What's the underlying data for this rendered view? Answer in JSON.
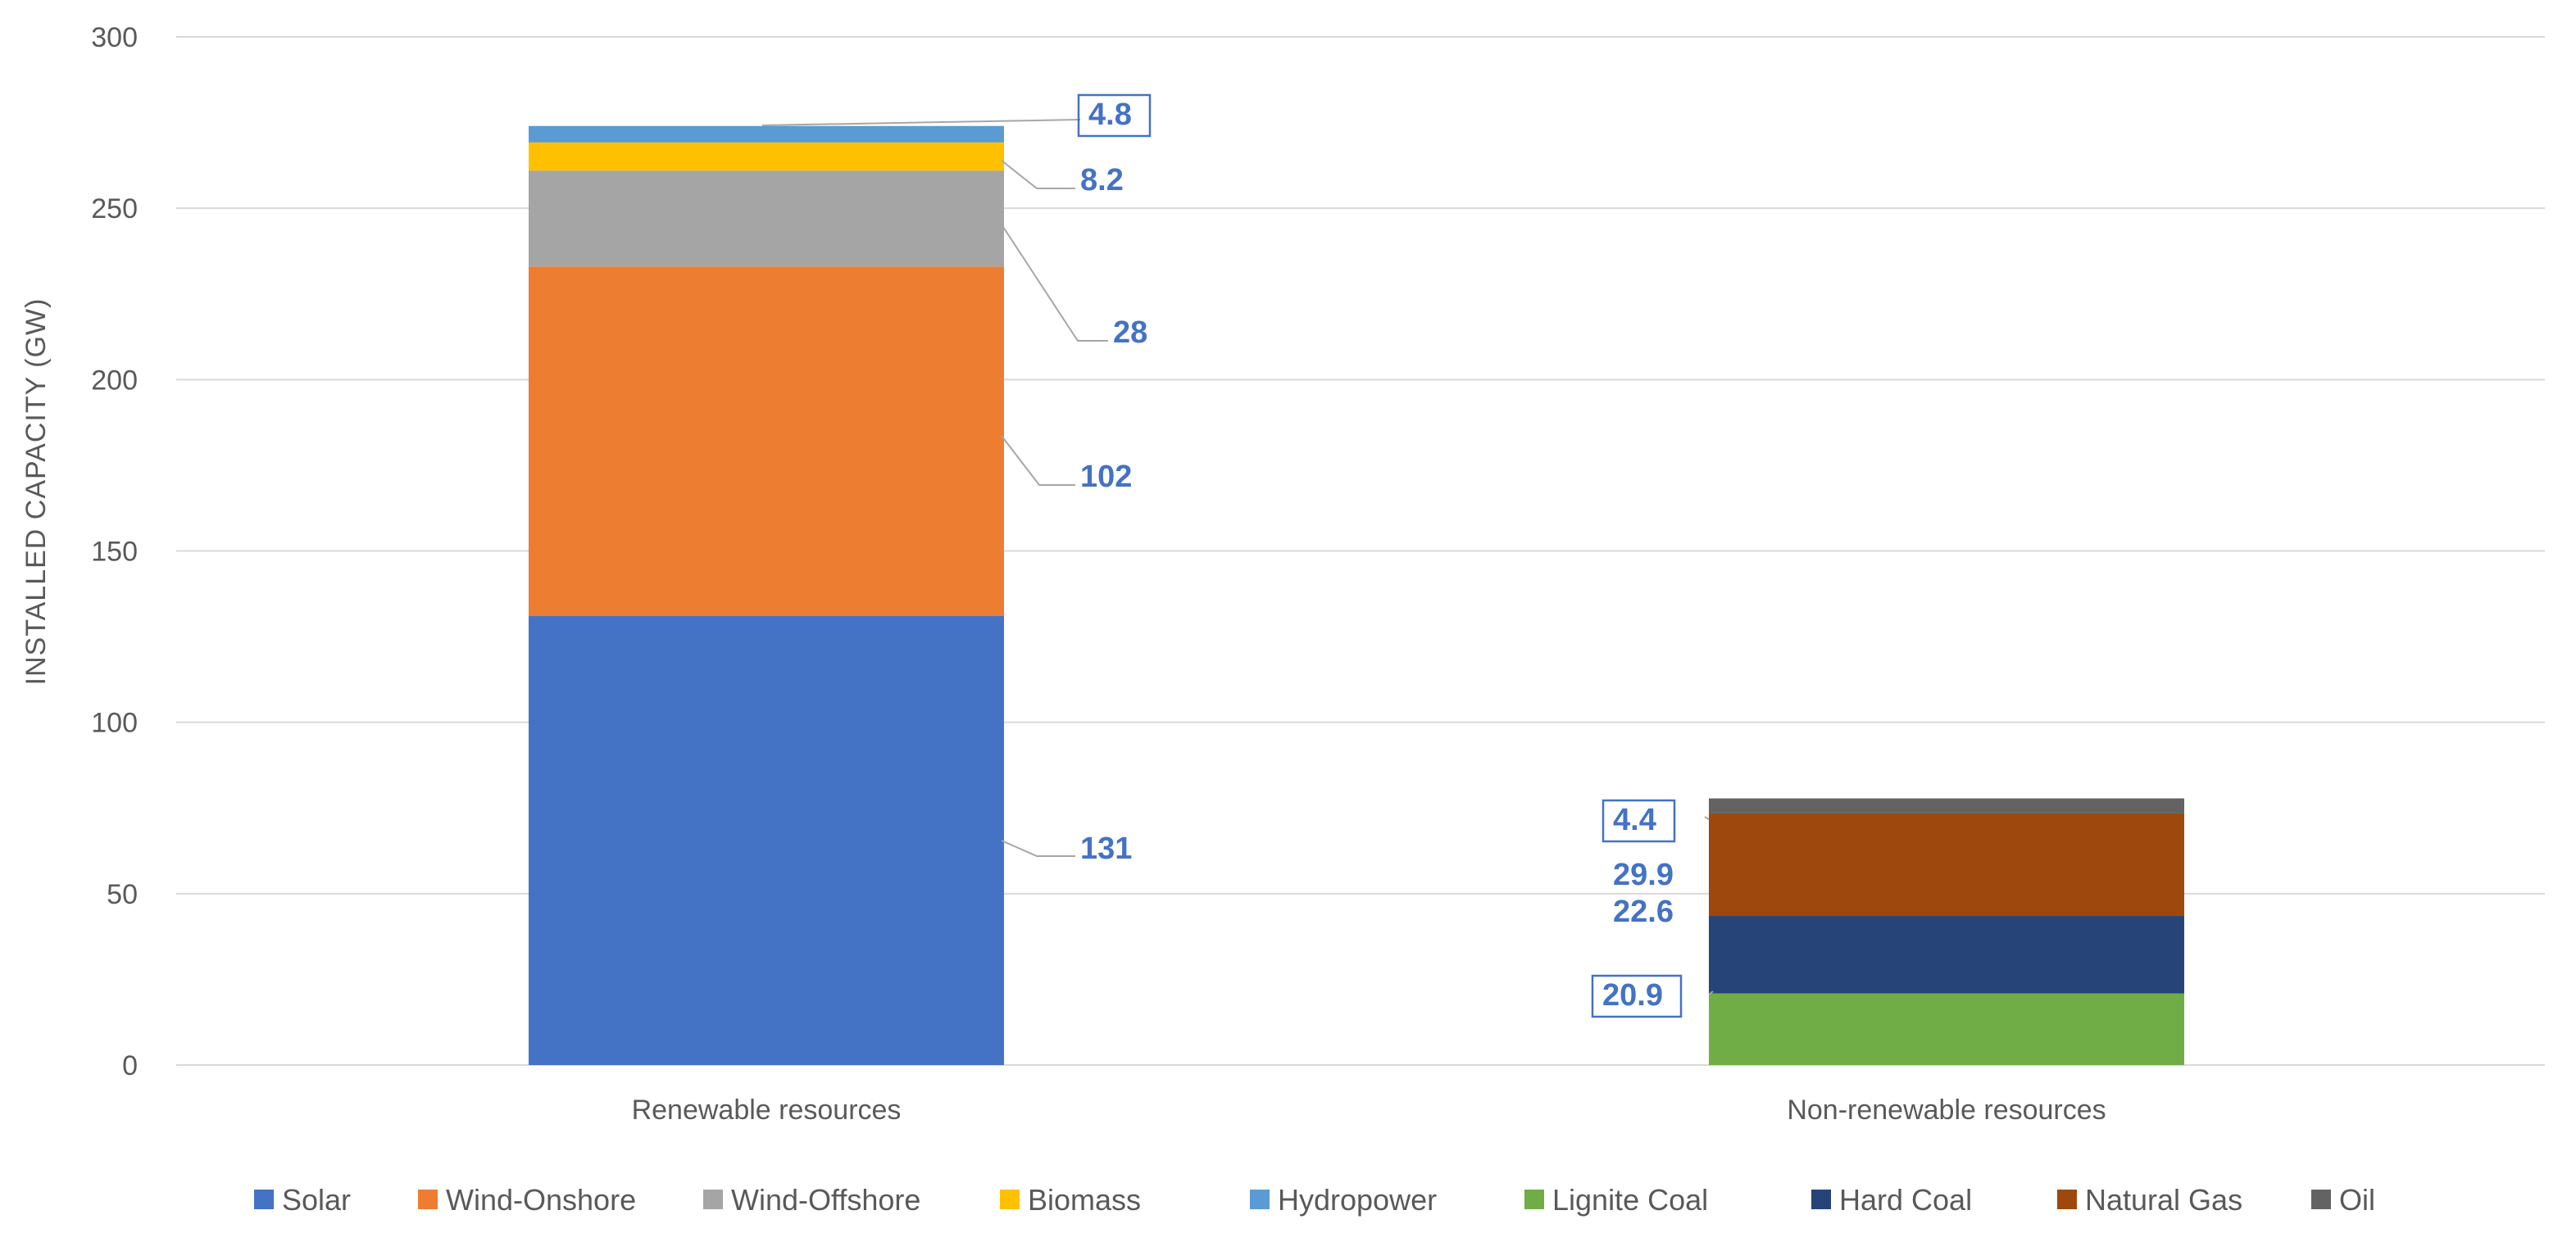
{
  "chart_data": {
    "type": "bar",
    "stacked": true,
    "title": "",
    "xlabel": "",
    "ylabel": "INSTALLED CAPACITY (GW)",
    "ylim": [
      0,
      300
    ],
    "yticks": [
      0,
      50,
      100,
      150,
      200,
      250,
      300
    ],
    "grid": true,
    "legend_position": "bottom",
    "categories": [
      "Renewable resources",
      "Non-renewable resources"
    ],
    "series": [
      {
        "name": "Solar",
        "color": "#4472C4",
        "values": [
          131,
          0
        ]
      },
      {
        "name": "Wind-Onshore",
        "color": "#ED7D31",
        "values": [
          102,
          0
        ]
      },
      {
        "name": "Wind-Offshore",
        "color": "#A5A5A5",
        "values": [
          28,
          0
        ]
      },
      {
        "name": "Biomass",
        "color": "#FFC000",
        "values": [
          8.2,
          0
        ]
      },
      {
        "name": "Hydropower",
        "color": "#5B9BD5",
        "values": [
          4.8,
          0
        ]
      },
      {
        "name": "Lignite Coal",
        "color": "#70AD47",
        "values": [
          0,
          20.9
        ]
      },
      {
        "name": "Hard Coal",
        "color": "#264478",
        "values": [
          0,
          22.6
        ]
      },
      {
        "name": "Natural Gas",
        "color": "#9E480E",
        "values": [
          0,
          29.9
        ]
      },
      {
        "name": "Oil",
        "color": "#636363",
        "values": [
          0,
          4.4
        ]
      }
    ],
    "data_labels": [
      {
        "category": 0,
        "series": "Solar",
        "text": "131",
        "color": "#4472C4",
        "boxed": false
      },
      {
        "category": 0,
        "series": "Wind-Onshore",
        "text": "102",
        "color": "#4472C4",
        "boxed": false
      },
      {
        "category": 0,
        "series": "Wind-Offshore",
        "text": "28",
        "color": "#4472C4",
        "boxed": false
      },
      {
        "category": 0,
        "series": "Biomass",
        "text": "8.2",
        "color": "#4472C4",
        "boxed": false
      },
      {
        "category": 0,
        "series": "Hydropower",
        "text": "4.8",
        "color": "#4472C4",
        "boxed": true
      },
      {
        "category": 1,
        "series": "Lignite Coal",
        "text": "20.9",
        "color": "#4472C4",
        "boxed": true
      },
      {
        "category": 1,
        "series": "Hard Coal",
        "text": "22.6",
        "color": "#4472C4",
        "boxed": false
      },
      {
        "category": 1,
        "series": "Natural Gas",
        "text": "29.9",
        "color": "#4472C4",
        "boxed": false
      },
      {
        "category": 1,
        "series": "Oil",
        "text": "4.4",
        "color": "#4472C4",
        "boxed": true
      }
    ]
  },
  "colors": {
    "gridline": "#D9D9D9",
    "axis_text": "#595959",
    "leader_line": "#A6A6A6",
    "label_box": "#4472C4"
  }
}
